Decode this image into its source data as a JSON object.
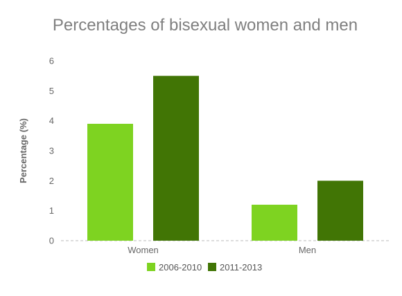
{
  "chart_data": {
    "type": "bar",
    "title": "Percentages of bisexual women and men",
    "xlabel": "",
    "ylabel": "Percentage (%)",
    "categories": [
      "Women",
      "Men"
    ],
    "series": [
      {
        "name": "2006-2010",
        "values": [
          3.9,
          1.2
        ],
        "color": "#7ed321"
      },
      {
        "name": "2011-2013",
        "values": [
          5.5,
          2.0
        ],
        "color": "#417505"
      }
    ],
    "ylim": [
      0,
      6
    ],
    "yticks": [
      "0",
      "1",
      "2",
      "3",
      "4",
      "5",
      "6"
    ],
    "grid": false,
    "legend_position": "bottom",
    "baseline_style": "dashed"
  }
}
